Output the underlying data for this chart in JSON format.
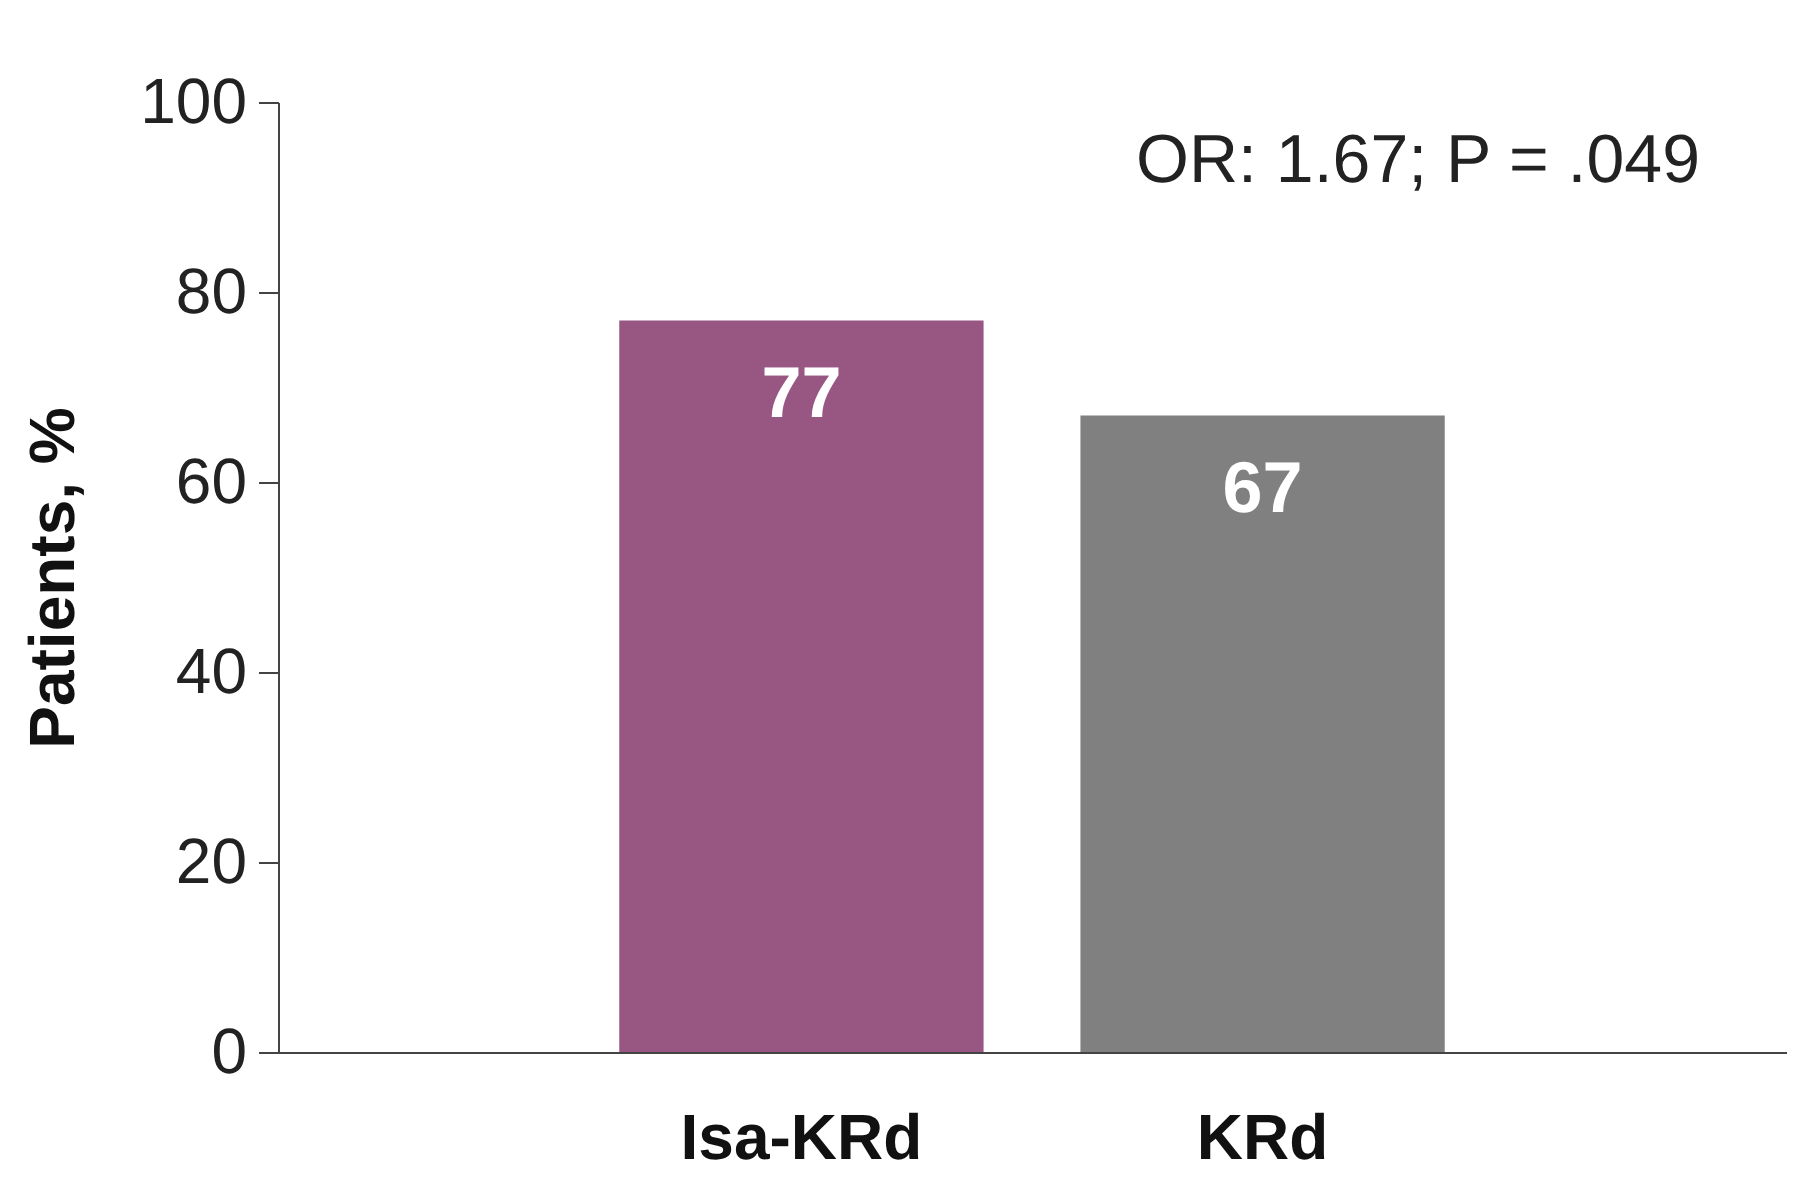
{
  "chart_data": {
    "type": "bar",
    "ylabel": "Patients, %",
    "categories": [
      "Isa-KRd",
      "KRd"
    ],
    "values": [
      77,
      67
    ],
    "colors": [
      "#985682",
      "#808080"
    ],
    "ylim": [
      0,
      100
    ],
    "yticks": [
      0,
      20,
      40,
      60,
      80,
      100
    ],
    "grid": false,
    "data_labels": true,
    "annotations": [
      "OR: 1.67; P = .049"
    ]
  }
}
